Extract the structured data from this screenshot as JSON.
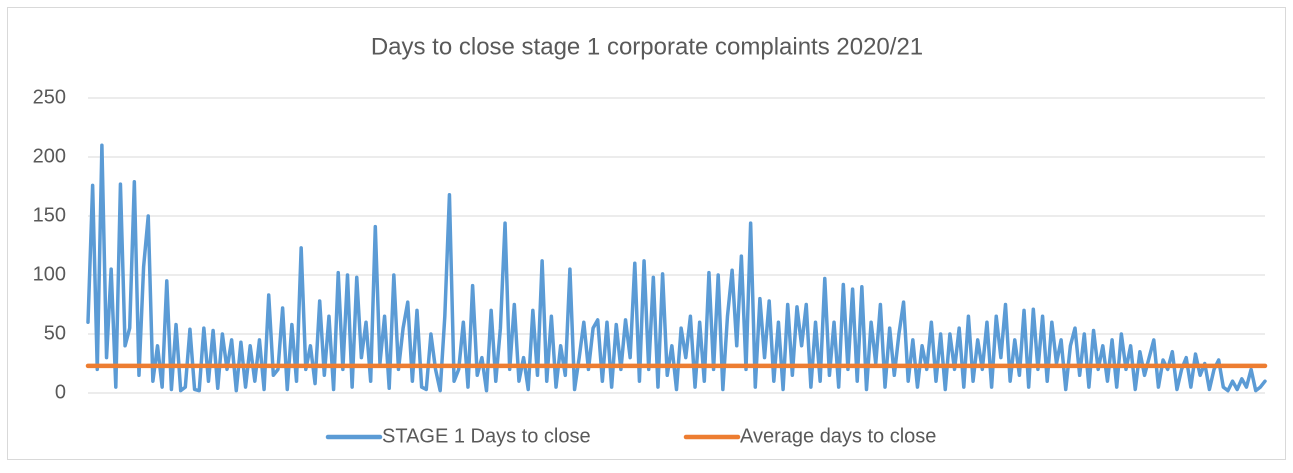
{
  "chart_data": {
    "type": "line",
    "title": "Days to close stage 1 corporate complaints 2020/21",
    "ylim": [
      0,
      250
    ],
    "yticks": [
      0,
      50,
      100,
      150,
      200,
      250
    ],
    "grid": true,
    "legend": "bottom",
    "series": [
      {
        "name": "STAGE 1 Days to close",
        "color": "#5b9bd5",
        "values": [
          60,
          176,
          20,
          210,
          30,
          105,
          5,
          177,
          40,
          55,
          179,
          15,
          107,
          150,
          10,
          40,
          5,
          95,
          3,
          58,
          2,
          5,
          54,
          3,
          2,
          55,
          10,
          53,
          4,
          50,
          20,
          45,
          2,
          43,
          5,
          40,
          10,
          45,
          3,
          83,
          15,
          20,
          72,
          3,
          58,
          10,
          123,
          20,
          40,
          8,
          78,
          15,
          65,
          3,
          102,
          20,
          100,
          5,
          98,
          30,
          60,
          10,
          141,
          25,
          65,
          4,
          100,
          20,
          55,
          77,
          10,
          70,
          5,
          3,
          50,
          20,
          2,
          65,
          168,
          10,
          20,
          60,
          5,
          91,
          15,
          30,
          2,
          70,
          10,
          55,
          144,
          20,
          75,
          10,
          30,
          3,
          70,
          15,
          112,
          10,
          65,
          5,
          40,
          15,
          105,
          3,
          30,
          60,
          20,
          55,
          62,
          10,
          60,
          5,
          58,
          20,
          62,
          30,
          110,
          10,
          112,
          20,
          98,
          5,
          101,
          15,
          40,
          3,
          55,
          30,
          65,
          5,
          60,
          10,
          102,
          20,
          100,
          3,
          65,
          104,
          40,
          116,
          20,
          144,
          5,
          80,
          30,
          78,
          10,
          60,
          3,
          75,
          15,
          73,
          40,
          75,
          5,
          60,
          10,
          97,
          15,
          60,
          5,
          92,
          20,
          88,
          10,
          90,
          3,
          60,
          25,
          75,
          5,
          55,
          15,
          50,
          77,
          10,
          45,
          5,
          40,
          20,
          60,
          10,
          50,
          3,
          50,
          20,
          55,
          5,
          65,
          10,
          45,
          20,
          60,
          5,
          65,
          30,
          75,
          10,
          45,
          15,
          70,
          5,
          71,
          20,
          65,
          10,
          60,
          25,
          45,
          3,
          40,
          55,
          15,
          50,
          5,
          53,
          20,
          40,
          10,
          45,
          5,
          50,
          20,
          40,
          3,
          35,
          15,
          30,
          45,
          5,
          28,
          20,
          35,
          3,
          20,
          30,
          5,
          33,
          15,
          25,
          3,
          20,
          28,
          5,
          2,
          10,
          3,
          12,
          5,
          20,
          2,
          5,
          10
        ]
      },
      {
        "name": "Average days to close",
        "color": "#ed7d31",
        "values": [
          23,
          23,
          23,
          23,
          23,
          23,
          23,
          23,
          23,
          23,
          23,
          23,
          23,
          23,
          23,
          23,
          23,
          23,
          23,
          23,
          23,
          23,
          23,
          23,
          23,
          23,
          23,
          23,
          23,
          23,
          23,
          23,
          23,
          23,
          23,
          23,
          23,
          23,
          23,
          23,
          23,
          23,
          23,
          23,
          23,
          23,
          23,
          23,
          23,
          23,
          23,
          23,
          23,
          23,
          23,
          23,
          23,
          23,
          23,
          23,
          23,
          23,
          23,
          23,
          23,
          23,
          23,
          23,
          23,
          23,
          23,
          23,
          23,
          23,
          23,
          23,
          23,
          23,
          23,
          23,
          23,
          23,
          23,
          23,
          23,
          23,
          23,
          23,
          23,
          23,
          23,
          23,
          23,
          23,
          23,
          23,
          23,
          23,
          23,
          23,
          23,
          23,
          23,
          23,
          23,
          23,
          23,
          23,
          23,
          23,
          23,
          23,
          23,
          23,
          23,
          23,
          23,
          23,
          23,
          23,
          23,
          23,
          23,
          23,
          23,
          23,
          23,
          23,
          23,
          23,
          23,
          23,
          23,
          23,
          23,
          23,
          23,
          23,
          23,
          23,
          23,
          23,
          23,
          23,
          23,
          23,
          23,
          23,
          23,
          23,
          23,
          23,
          23,
          23,
          23,
          23,
          23,
          23,
          23,
          23,
          23,
          23,
          23,
          23,
          23,
          23,
          23,
          23,
          23,
          23,
          23,
          23,
          23,
          23,
          23,
          23,
          23,
          23,
          23,
          23,
          23,
          23,
          23,
          23,
          23,
          23,
          23,
          23,
          23,
          23,
          23,
          23,
          23,
          23,
          23,
          23,
          23,
          23,
          23,
          23,
          23,
          23,
          23,
          23,
          23,
          23,
          23,
          23,
          23,
          23,
          23,
          23,
          23,
          23,
          23,
          23,
          23,
          23,
          23,
          23,
          23,
          23,
          23,
          23,
          23,
          23,
          23,
          23,
          23,
          23,
          23,
          23,
          23,
          23,
          23,
          23,
          23,
          23,
          23,
          23,
          23,
          23,
          23,
          23,
          23,
          23,
          23,
          23,
          23,
          23,
          23,
          23,
          23,
          23,
          23
        ]
      }
    ]
  }
}
